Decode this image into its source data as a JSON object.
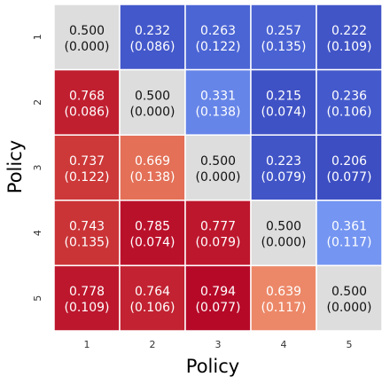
{
  "chart_data": {
    "type": "heatmap",
    "xlabel": "Policy",
    "ylabel": "Policy",
    "row_labels": [
      "1",
      "2",
      "3",
      "4",
      "5"
    ],
    "col_labels": [
      "1",
      "2",
      "3",
      "4",
      "5"
    ],
    "values": [
      [
        0.5,
        0.232,
        0.263,
        0.257,
        0.222
      ],
      [
        0.768,
        0.5,
        0.331,
        0.215,
        0.236
      ],
      [
        0.737,
        0.669,
        0.5,
        0.223,
        0.206
      ],
      [
        0.743,
        0.785,
        0.777,
        0.5,
        0.361
      ],
      [
        0.778,
        0.764,
        0.794,
        0.639,
        0.5
      ]
    ],
    "std": [
      [
        0.0,
        0.086,
        0.122,
        0.135,
        0.109
      ],
      [
        0.086,
        0.0,
        0.138,
        0.074,
        0.106
      ],
      [
        0.122,
        0.138,
        0.0,
        0.079,
        0.077
      ],
      [
        0.135,
        0.074,
        0.079,
        0.0,
        0.117
      ],
      [
        0.109,
        0.106,
        0.077,
        0.117,
        0.0
      ]
    ],
    "cells_text": [
      [
        {
          "value": "0.500",
          "std": "(0.000)"
        },
        {
          "value": "0.232",
          "std": "(0.086)"
        },
        {
          "value": "0.263",
          "std": "(0.122)"
        },
        {
          "value": "0.257",
          "std": "(0.135)"
        },
        {
          "value": "0.222",
          "std": "(0.109)"
        }
      ],
      [
        {
          "value": "0.768",
          "std": "(0.086)"
        },
        {
          "value": "0.500",
          "std": "(0.000)"
        },
        {
          "value": "0.331",
          "std": "(0.138)"
        },
        {
          "value": "0.215",
          "std": "(0.074)"
        },
        {
          "value": "0.236",
          "std": "(0.106)"
        }
      ],
      [
        {
          "value": "0.737",
          "std": "(0.122)"
        },
        {
          "value": "0.669",
          "std": "(0.138)"
        },
        {
          "value": "0.500",
          "std": "(0.000)"
        },
        {
          "value": "0.223",
          "std": "(0.079)"
        },
        {
          "value": "0.206",
          "std": "(0.077)"
        }
      ],
      [
        {
          "value": "0.743",
          "std": "(0.135)"
        },
        {
          "value": "0.785",
          "std": "(0.074)"
        },
        {
          "value": "0.777",
          "std": "(0.079)"
        },
        {
          "value": "0.500",
          "std": "(0.000)"
        },
        {
          "value": "0.361",
          "std": "(0.117)"
        }
      ],
      [
        {
          "value": "0.778",
          "std": "(0.109)"
        },
        {
          "value": "0.764",
          "std": "(0.106)"
        },
        {
          "value": "0.794",
          "std": "(0.077)"
        },
        {
          "value": "0.639",
          "std": "(0.117)"
        },
        {
          "value": "0.500",
          "std": "(0.000)"
        }
      ]
    ],
    "colormap": "coolwarm",
    "vmin": 0.2,
    "vmax": 0.8,
    "grid": false,
    "colorbar": false
  }
}
